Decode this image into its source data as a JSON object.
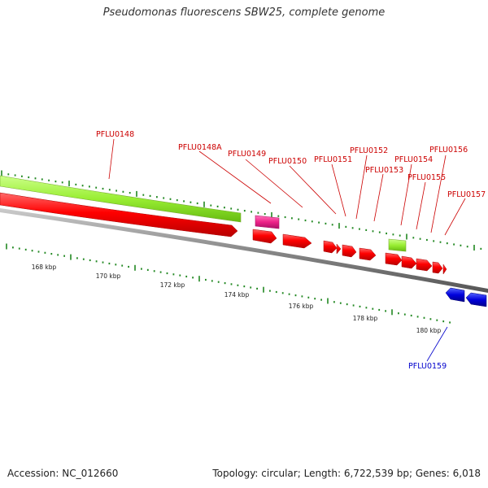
{
  "title": "Pseudomonas fluorescens SBW25, complete genome",
  "footer": {
    "accession_label": "Accession:",
    "accession": "NC_012660",
    "topology_label": "Topology:",
    "topology": "circular",
    "length_label": "Length:",
    "length": "6,722,539 bp",
    "genes_label": "Genes:",
    "genes": "6,018"
  },
  "scale": {
    "unit": "kbp",
    "labels": [
      "168 kbp",
      "170 kbp",
      "172 kbp",
      "174 kbp",
      "176 kbp",
      "178 kbp",
      "180 kbp"
    ]
  },
  "colors": {
    "forward_cds": "#ff0000",
    "reverse_cds": "#0000dd",
    "green_feature": "#99ee33",
    "magenta_feature": "#ee2288",
    "tick": "#228822",
    "backbone": "#888888",
    "label_forward": "#cc0000",
    "label_reverse": "#0000cc"
  },
  "genes": [
    {
      "name": "PFLU0148",
      "strand": "+",
      "color": "forward"
    },
    {
      "name": "PFLU0148A",
      "strand": "+",
      "color": "forward"
    },
    {
      "name": "PFLU0149",
      "strand": "+",
      "color": "forward"
    },
    {
      "name": "PFLU0150",
      "strand": "+",
      "color": "forward"
    },
    {
      "name": "PFLU0151",
      "strand": "+",
      "color": "forward"
    },
    {
      "name": "PFLU0152",
      "strand": "+",
      "color": "forward"
    },
    {
      "name": "PFLU0153",
      "strand": "+",
      "color": "forward"
    },
    {
      "name": "PFLU0154",
      "strand": "+",
      "color": "forward"
    },
    {
      "name": "PFLU0155",
      "strand": "+",
      "color": "forward"
    },
    {
      "name": "PFLU0156",
      "strand": "+",
      "color": "forward"
    },
    {
      "name": "PFLU0157",
      "strand": "+",
      "color": "forward"
    },
    {
      "name": "PFLU0159",
      "strand": "-",
      "color": "reverse"
    }
  ]
}
